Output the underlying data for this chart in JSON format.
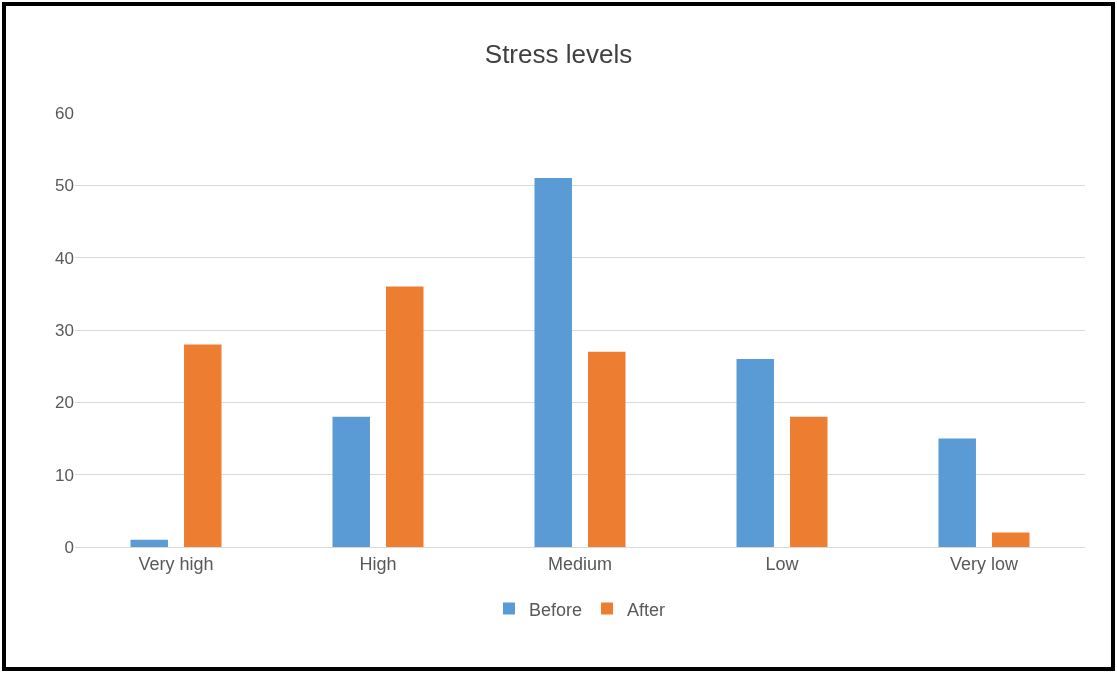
{
  "chart_data": {
    "type": "bar",
    "title": "Stress levels",
    "categories": [
      "Very high",
      "High",
      "Medium",
      "Low",
      "Very low"
    ],
    "series": [
      {
        "name": "Before",
        "color": "#5b9bd5",
        "values": [
          1,
          18,
          51,
          26,
          15
        ]
      },
      {
        "name": "After",
        "color": "#ed7d31",
        "values": [
          28,
          36,
          27,
          18,
          2
        ]
      }
    ],
    "ylim": [
      0,
      60
    ],
    "yticks": [
      0,
      10,
      20,
      30,
      40,
      50,
      60
    ],
    "grid": "y",
    "legend": "bottom"
  }
}
